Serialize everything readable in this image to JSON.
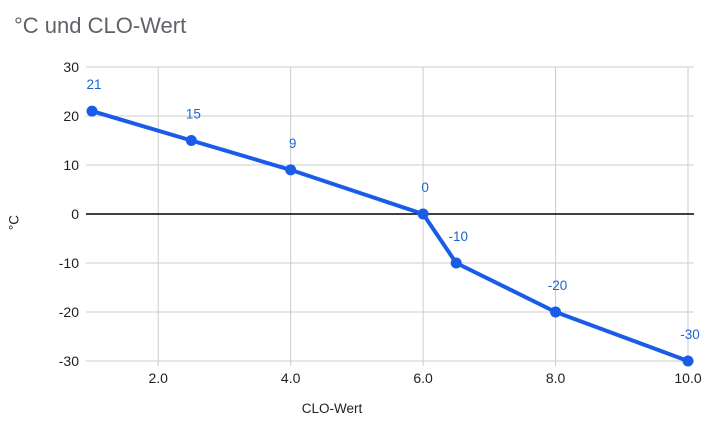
{
  "title": "°C und CLO-Wert",
  "colors": {
    "series": "#1a5ce8",
    "point_label": "#1967d2",
    "grid": "#cccccc",
    "zero_axis": "#000000",
    "title_text": "#5f6368",
    "tick_text": "#1f1f1f"
  },
  "chart_data": {
    "type": "line",
    "title": "°C und CLO-Wert",
    "xlabel": "CLO-Wert",
    "ylabel": "°C",
    "x": [
      1,
      2.5,
      4,
      6,
      6.5,
      8,
      10
    ],
    "y": [
      21,
      15,
      9,
      0,
      -10,
      -20,
      -30
    ],
    "point_labels": [
      "21",
      "15",
      "9",
      "0",
      "-10",
      "-20",
      "-30"
    ],
    "xlim": [
      1,
      10
    ],
    "ylim": [
      -30,
      30
    ],
    "x_tick_values": [
      2,
      4,
      6,
      8,
      10
    ],
    "x_tick_labels": [
      "2.0",
      "4.0",
      "6.0",
      "8.0",
      "10.0"
    ],
    "y_tick_values": [
      30,
      20,
      10,
      0,
      -10,
      -20,
      -30
    ],
    "y_tick_labels": [
      "30",
      "20",
      "10",
      "0",
      "-10",
      "-20",
      "-30"
    ],
    "grid": true,
    "zero_line": true,
    "legend": "none"
  }
}
